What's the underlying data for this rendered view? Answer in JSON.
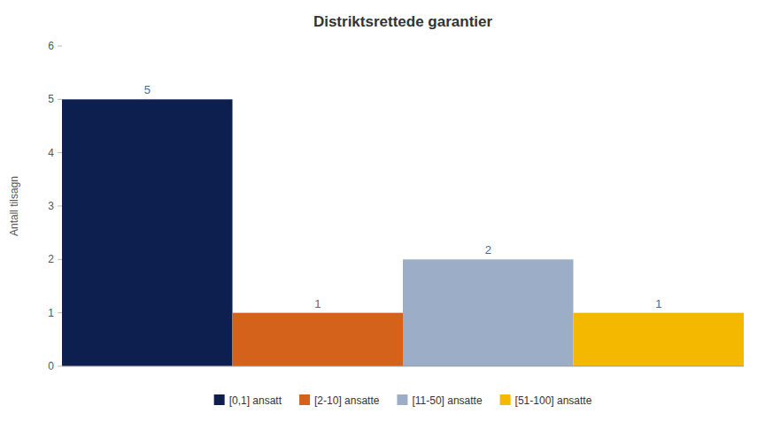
{
  "chart_data": {
    "type": "bar",
    "title": "Distriktsrettede garantier",
    "ylabel": "Antall tilsagn",
    "categories": [
      "[0,1] ansatt",
      "[2-10] ansatte",
      "[11-50] ansatte",
      "[51-100] ansatte"
    ],
    "values": [
      5,
      1,
      2,
      1
    ],
    "colors": [
      "#0d1f4e",
      "#d4621a",
      "#9badc7",
      "#f5b800"
    ],
    "ylim": [
      0,
      6
    ],
    "yticks": [
      0,
      1,
      2,
      3,
      4,
      5,
      6
    ],
    "grid": false,
    "legend": "bottom",
    "data_labels": true,
    "tick_labels": "y"
  }
}
